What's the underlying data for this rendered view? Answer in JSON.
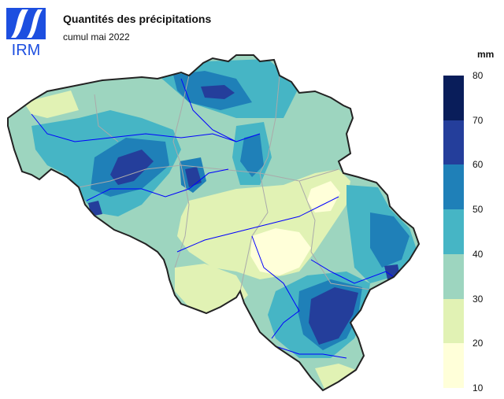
{
  "header": {
    "logo_text": "IRM",
    "title": "Quantités des précipitations",
    "subtitle": "cumul mai 2022"
  },
  "legend": {
    "unit": "mm",
    "classes": [
      {
        "min": 10,
        "max": 20,
        "color": "#ffffd9"
      },
      {
        "min": 20,
        "max": 30,
        "color": "#e1f2b4"
      },
      {
        "min": 30,
        "max": 40,
        "color": "#9dd5bf"
      },
      {
        "min": 40,
        "max": 50,
        "color": "#46b5c5"
      },
      {
        "min": 50,
        "max": 60,
        "color": "#1f80b8"
      },
      {
        "min": 60,
        "max": 70,
        "color": "#243e9b"
      },
      {
        "min": 70,
        "max": 80,
        "color": "#091d5a"
      }
    ],
    "ticks": [
      "10",
      "20",
      "30",
      "40",
      "50",
      "60",
      "70",
      "80"
    ]
  },
  "map": {
    "region": "Belgium",
    "base_color": "#9dd5bf",
    "border_color": "#222222",
    "river_color": "#0000ff",
    "province_border_color": "#aaaaaa"
  }
}
